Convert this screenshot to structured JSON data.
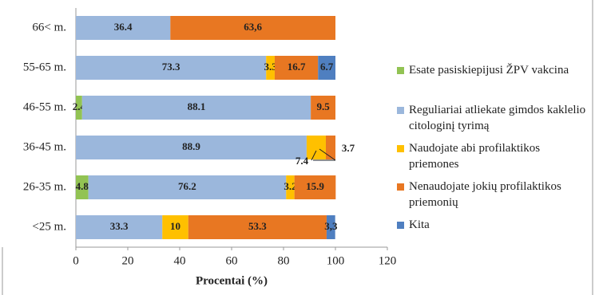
{
  "chart_data": {
    "type": "stacked-barh",
    "categories": [
      "66< m.",
      "55-65 m.",
      "46-55 m.",
      "36-45 m.",
      "26-35 m.",
      "<25 m."
    ],
    "series": [
      {
        "name": "Esate pasiskiepijusi ŽPV vakcina",
        "color": "#92c353",
        "values": [
          null,
          null,
          2.4,
          null,
          4.8,
          null
        ]
      },
      {
        "name": "Reguliariai atliekate gimdos kaklelio citologinį tyrimą",
        "color": "#9bb7dc",
        "values": [
          36.4,
          73.3,
          88.1,
          88.9,
          76.2,
          33.3
        ]
      },
      {
        "name": "Naudojate abi profilaktikos priemones",
        "color": "#ffc000",
        "values": [
          null,
          3.3,
          null,
          7.4,
          3.2,
          10
        ]
      },
      {
        "name": "Nenaudojate jokių profilaktikos priemonių",
        "color": "#e87722",
        "values": [
          63.6,
          16.7,
          9.5,
          3.7,
          15.9,
          53.3
        ],
        "value_labels": [
          "63,6",
          "16.7",
          "9.5",
          "3.7",
          "15.9",
          "53.3"
        ]
      },
      {
        "name": "Kita",
        "color": "#4f7fc0",
        "values": [
          null,
          6.7,
          null,
          null,
          null,
          3.3
        ],
        "value_labels": [
          null,
          "6.7",
          null,
          null,
          null,
          "3,3"
        ]
      }
    ],
    "xlabel": "Procentai (%)",
    "xlim": [
      0,
      120
    ],
    "xticks": [
      0,
      20,
      40,
      60,
      80,
      100,
      120
    ],
    "legend": "right"
  }
}
